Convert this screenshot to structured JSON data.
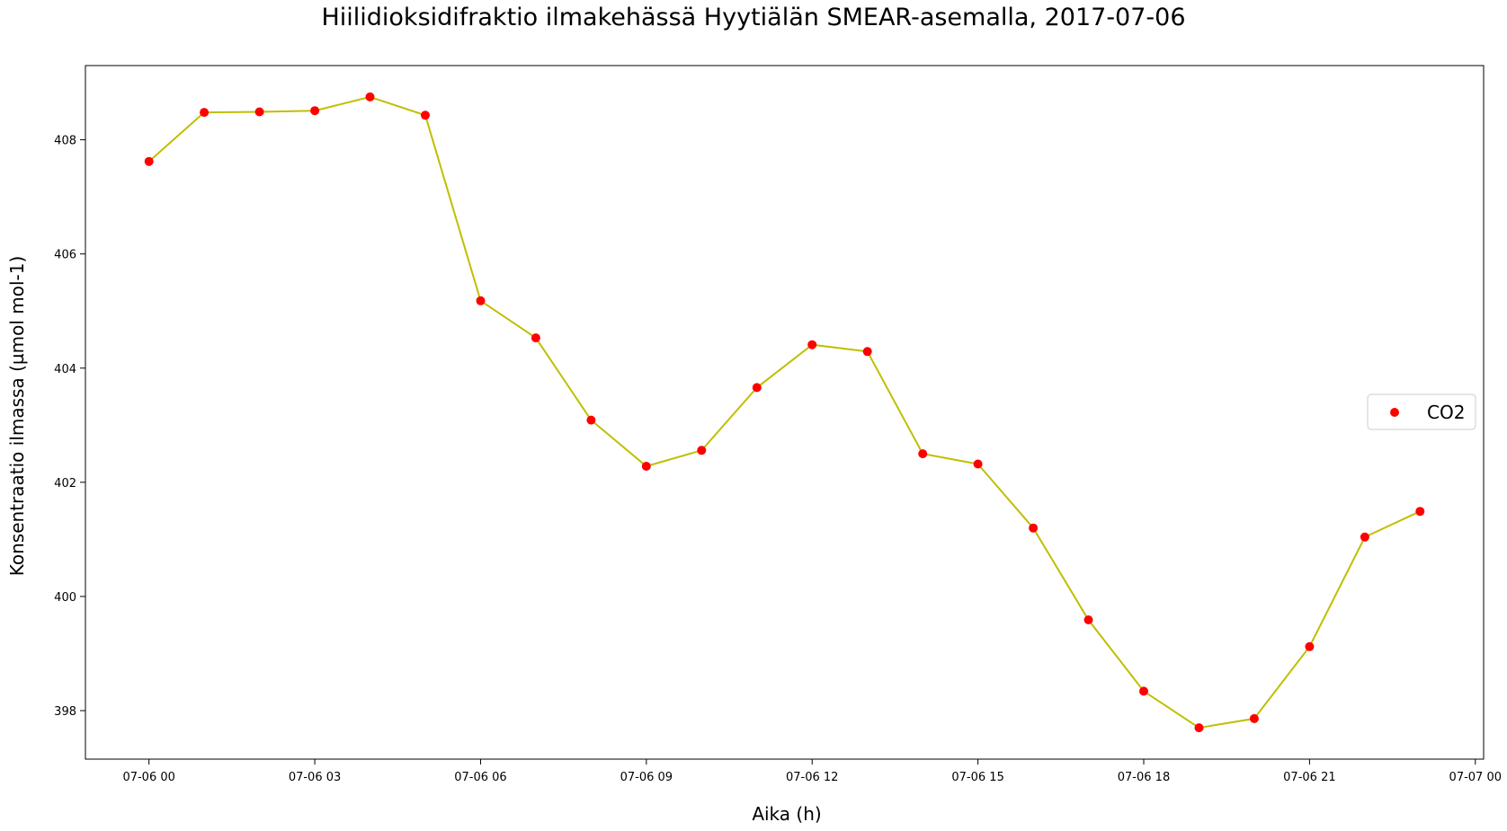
{
  "chart_data": {
    "type": "line",
    "title": "Hiilidioksidifraktio ilmakehässä Hyytiälän SMEAR-asemalla, 2017-07-06",
    "xlabel": "Aika (h)",
    "ylabel": "Konsentraatio ilmassa (µmol mol-1)",
    "x": [
      "2017-07-06 00:00",
      "2017-07-06 01:00",
      "2017-07-06 02:00",
      "2017-07-06 03:00",
      "2017-07-06 04:00",
      "2017-07-06 05:00",
      "2017-07-06 06:00",
      "2017-07-06 07:00",
      "2017-07-06 08:00",
      "2017-07-06 09:00",
      "2017-07-06 10:00",
      "2017-07-06 11:00",
      "2017-07-06 12:00",
      "2017-07-06 13:00",
      "2017-07-06 14:00",
      "2017-07-06 15:00",
      "2017-07-06 16:00",
      "2017-07-06 17:00",
      "2017-07-06 18:00",
      "2017-07-06 19:00",
      "2017-07-06 20:00",
      "2017-07-06 21:00",
      "2017-07-06 22:00",
      "2017-07-06 23:00"
    ],
    "series": [
      {
        "name": "CO2",
        "values": [
          407.62,
          408.48,
          408.49,
          408.51,
          408.75,
          408.43,
          405.18,
          404.53,
          403.09,
          402.28,
          402.56,
          403.66,
          404.41,
          404.29,
          402.5,
          402.32,
          401.2,
          399.59,
          398.34,
          397.7,
          397.86,
          399.12,
          401.04,
          401.49
        ],
        "marker_color": "#ff0000",
        "line_color": "#bfbf00"
      }
    ],
    "x_ticks": [
      "07-06 00",
      "07-06 03",
      "07-06 06",
      "07-06 09",
      "07-06 12",
      "07-06 15",
      "07-06 18",
      "07-06 21",
      "07-07 00"
    ],
    "y_ticks": [
      "398",
      "400",
      "402",
      "404",
      "406",
      "408"
    ],
    "xlim": [
      "2017-07-05 22:51",
      "2017-07-07 00:09"
    ],
    "ylim": [
      397.15,
      409.3
    ],
    "grid": false,
    "legend_position": "center-right"
  }
}
